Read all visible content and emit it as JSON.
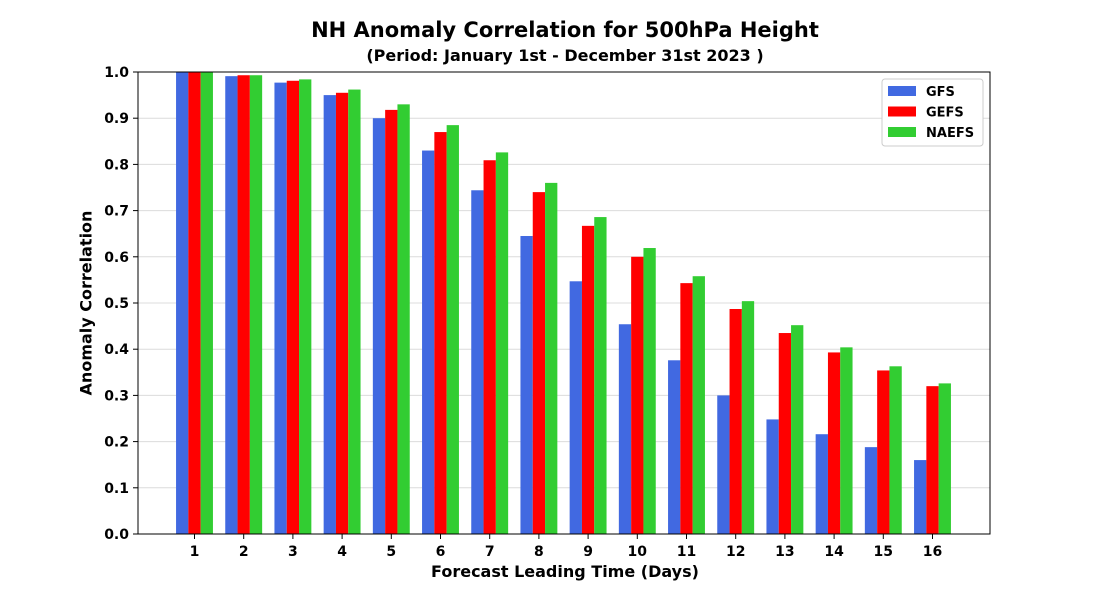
{
  "chart_data": {
    "type": "bar",
    "title": "NH Anomaly Correlation for 500hPa Height",
    "subtitle": "(Period: January 1st - December 31st 2023 )",
    "xlabel": "Forecast Leading Time (Days)",
    "ylabel": "Anomaly Correlation",
    "categories": [
      "1",
      "2",
      "3",
      "4",
      "5",
      "6",
      "7",
      "8",
      "9",
      "10",
      "11",
      "12",
      "13",
      "14",
      "15",
      "16"
    ],
    "yticks": [
      "0.0",
      "0.1",
      "0.2",
      "0.3",
      "0.4",
      "0.5",
      "0.6",
      "0.7",
      "0.8",
      "0.9",
      "1.0"
    ],
    "ylim": [
      0,
      1.0
    ],
    "grid": "horizontal",
    "legend_position": "top-right",
    "series": [
      {
        "name": "GFS",
        "color": "#4169E1",
        "values": [
          0.999,
          0.991,
          0.977,
          0.95,
          0.9,
          0.83,
          0.744,
          0.645,
          0.547,
          0.454,
          0.376,
          0.3,
          0.248,
          0.216,
          0.188,
          0.16
        ]
      },
      {
        "name": "GEFS",
        "color": "#FF0000",
        "values": [
          0.999,
          0.993,
          0.981,
          0.955,
          0.918,
          0.87,
          0.809,
          0.74,
          0.667,
          0.6,
          0.543,
          0.487,
          0.435,
          0.393,
          0.354,
          0.32
        ]
      },
      {
        "name": "NAEFS",
        "color": "#32CD32",
        "values": [
          0.999,
          0.993,
          0.984,
          0.962,
          0.93,
          0.885,
          0.826,
          0.76,
          0.686,
          0.619,
          0.558,
          0.504,
          0.452,
          0.404,
          0.363,
          0.326
        ]
      }
    ]
  }
}
